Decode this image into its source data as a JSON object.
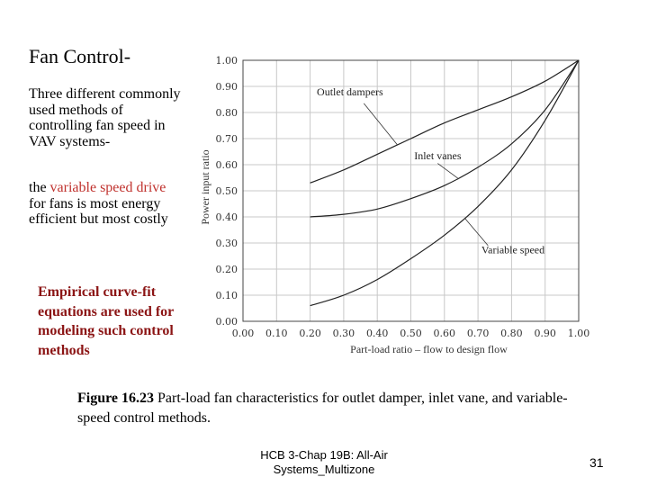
{
  "slide": {
    "title": "Fan Control-",
    "para1": "Three different commonly used methods of controlling fan speed in VAV systems-",
    "para2": {
      "prefix": "the ",
      "highlight": "variable speed drive",
      "suffix": " for fans is most energy efficient but most costly"
    },
    "para3": "Empirical curve-fit equations are used for modeling such control methods",
    "caption": {
      "label": "Figure 16.23",
      "text": " Part-load fan characteristics for outlet damper, inlet vane, and variable-speed control methods."
    },
    "footer": "HCB 3-Chap 19B: All-Air Systems_Multizone",
    "page_number": "31",
    "highlight_color": "#c0322e",
    "emphasis_color": "#8b1414"
  },
  "chart_data": {
    "type": "line",
    "xlabel": "Part-load ratio – flow to design flow",
    "ylabel": "Power input ratio",
    "xlim": [
      0,
      1
    ],
    "ylim": [
      0,
      1
    ],
    "grid": true,
    "xticks": [
      "0.00",
      "0.10",
      "0.20",
      "0.30",
      "0.40",
      "0.50",
      "0.60",
      "0.70",
      "0.80",
      "0.90",
      "1.00"
    ],
    "yticks": [
      "0.00",
      "0.10",
      "0.20",
      "0.30",
      "0.40",
      "0.50",
      "0.60",
      "0.70",
      "0.80",
      "0.90",
      "1.00"
    ],
    "series": [
      {
        "name": "Outlet dampers",
        "x": [
          0.2,
          0.3,
          0.4,
          0.5,
          0.6,
          0.7,
          0.8,
          0.9,
          1.0
        ],
        "y": [
          0.53,
          0.58,
          0.64,
          0.7,
          0.76,
          0.81,
          0.86,
          0.92,
          1.0
        ]
      },
      {
        "name": "Inlet vanes",
        "x": [
          0.2,
          0.3,
          0.4,
          0.5,
          0.6,
          0.7,
          0.8,
          0.9,
          1.0
        ],
        "y": [
          0.4,
          0.41,
          0.43,
          0.47,
          0.52,
          0.59,
          0.68,
          0.81,
          1.0
        ]
      },
      {
        "name": "Variable speed",
        "x": [
          0.2,
          0.3,
          0.4,
          0.5,
          0.6,
          0.7,
          0.8,
          0.9,
          1.0
        ],
        "y": [
          0.06,
          0.1,
          0.16,
          0.24,
          0.33,
          0.44,
          0.58,
          0.77,
          1.0
        ]
      }
    ]
  }
}
